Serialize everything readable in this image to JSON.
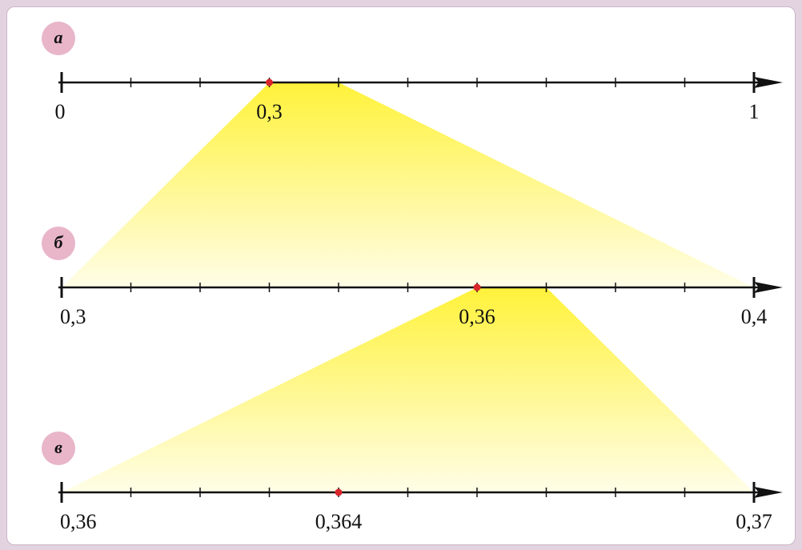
{
  "lines": [
    {
      "label": "а",
      "start": {
        "value": 0,
        "label": "0"
      },
      "end": {
        "value": 1,
        "label": "1"
      },
      "point": {
        "value": 0.3,
        "label": "0,3"
      }
    },
    {
      "label": "б",
      "start": {
        "value": 0.3,
        "label": "0,3"
      },
      "end": {
        "value": 0.4,
        "label": "0,4"
      },
      "point": {
        "value": 0.36,
        "label": "0,36"
      }
    },
    {
      "label": "в",
      "start": {
        "value": 0.36,
        "label": "0,36"
      },
      "end": {
        "value": 0.37,
        "label": "0,37"
      },
      "point": {
        "value": 0.364,
        "label": "0,364"
      }
    }
  ]
}
